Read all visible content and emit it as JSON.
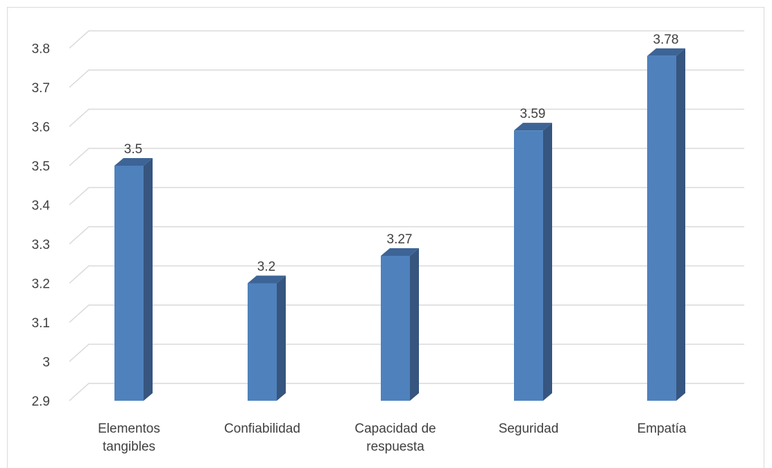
{
  "chart_data": {
    "type": "bar",
    "title": "",
    "xlabel": "",
    "ylabel": "",
    "categories": [
      [
        "Elementos",
        "tangibles"
      ],
      [
        "Confiabilidad"
      ],
      [
        "Capacidad de",
        "respuesta"
      ],
      [
        "Seguridad"
      ],
      [
        "Empatía"
      ]
    ],
    "values": [
      3.5,
      3.2,
      3.27,
      3.59,
      3.78
    ],
    "data_labels": [
      "3.5",
      "3.2",
      "3.27",
      "3.59",
      "3.78"
    ],
    "yticks": [
      2.9,
      3,
      3.1,
      3.2,
      3.3,
      3.4,
      3.5,
      3.6,
      3.7,
      3.8
    ],
    "ytick_labels": [
      "2.9",
      "3",
      "3.1",
      "3.2",
      "3.3",
      "3.4",
      "3.5",
      "3.6",
      "3.7",
      "3.8"
    ],
    "ylim": [
      2.9,
      3.9
    ],
    "style": "3d-column",
    "grid": true,
    "legend": "none",
    "colors": {
      "bar_front": "#4f81bd",
      "bar_side": "#36557f",
      "bar_top": "#3d6496",
      "grid": "#d9d9d9",
      "text": "#404040"
    }
  }
}
